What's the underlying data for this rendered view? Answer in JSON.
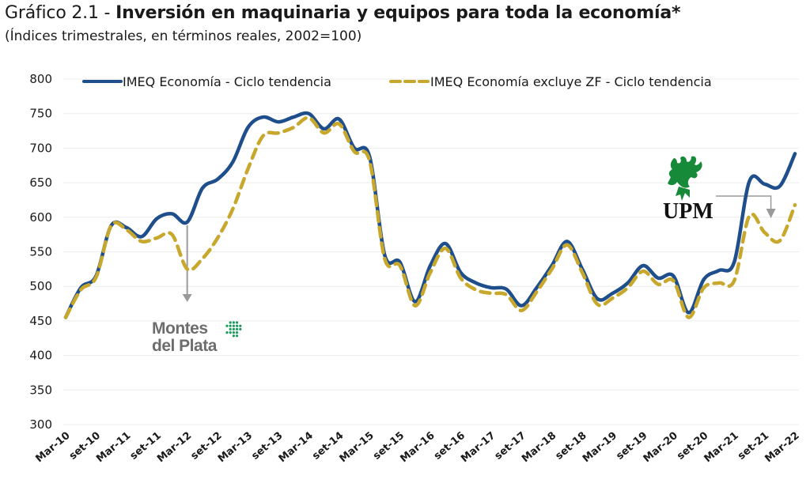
{
  "chart_data": {
    "type": "line",
    "title_lead": "Gráfico 2.1 - ",
    "title": "Inversión en maquinaria y equipos para toda la economía*",
    "subtitle": "(Índices trimestrales, en términos reales, 2002=100)",
    "xlabel": "",
    "ylabel": "",
    "ylim": [
      300,
      800
    ],
    "yticks": [
      800,
      750,
      700,
      650,
      600,
      550,
      500,
      450,
      400,
      350,
      300
    ],
    "grid": true,
    "legend_position": "top",
    "x_tick_labels": [
      "Mar-10",
      "set-10",
      "Mar-11",
      "set-11",
      "Mar-12",
      "set-12",
      "Mar-13",
      "set-13",
      "Mar-14",
      "set-14",
      "Mar-15",
      "set-15",
      "Mar-16",
      "set-16",
      "Mar-17",
      "set-17",
      "Mar-18",
      "set-18",
      "Mar-19",
      "set-19",
      "Mar-20",
      "set-20",
      "Mar-21",
      "set-21",
      "Mar-22"
    ],
    "x": [
      "Mar-10",
      "Jun-10",
      "set-10",
      "Dic-10",
      "Mar-11",
      "Jun-11",
      "set-11",
      "Dic-11",
      "Mar-12",
      "Jun-12",
      "set-12",
      "Dic-12",
      "Mar-13",
      "Jun-13",
      "set-13",
      "Dic-13",
      "Mar-14",
      "Jun-14",
      "set-14",
      "Dic-14",
      "Mar-15",
      "Jun-15",
      "set-15",
      "Dic-15",
      "Mar-16",
      "Jun-16",
      "set-16",
      "Dic-16",
      "Mar-17",
      "Jun-17",
      "set-17",
      "Dic-17",
      "Mar-18",
      "Jun-18",
      "set-18",
      "Dic-18",
      "Mar-19",
      "Jun-19",
      "set-19",
      "Dic-19",
      "Mar-20",
      "Jun-20",
      "set-20",
      "Dic-20",
      "Mar-21",
      "Jun-21",
      "set-21",
      "Dic-21",
      "Mar-22"
    ],
    "series": [
      {
        "name": "IMEQ Economía - Ciclo tendencia",
        "color": "#1f4e8c",
        "style": "solid",
        "values": [
          455,
          498,
          515,
          588,
          585,
          572,
          598,
          605,
          593,
          642,
          655,
          680,
          730,
          745,
          738,
          745,
          750,
          728,
          742,
          700,
          688,
          545,
          535,
          478,
          530,
          562,
          520,
          505,
          498,
          496,
          472,
          498,
          530,
          565,
          525,
          482,
          490,
          505,
          530,
          512,
          515,
          462,
          510,
          523,
          535,
          652,
          648,
          645,
          692
        ]
      },
      {
        "name": "IMEQ Economía excluye ZF - Ciclo tendencia",
        "color": "#c8a82c",
        "style": "dashed",
        "values": [
          455,
          495,
          513,
          588,
          582,
          565,
          570,
          575,
          525,
          540,
          570,
          612,
          670,
          718,
          722,
          730,
          744,
          722,
          735,
          695,
          682,
          540,
          530,
          472,
          520,
          555,
          512,
          495,
          490,
          488,
          465,
          492,
          525,
          560,
          520,
          474,
          483,
          498,
          522,
          503,
          508,
          455,
          498,
          505,
          508,
          602,
          578,
          566,
          618
        ]
      }
    ],
    "annotations": [
      {
        "label": "Montes del Plata",
        "type": "logo",
        "near": "Mar-12",
        "arrow": "down"
      },
      {
        "label": "UPM",
        "type": "logo",
        "near": "set-21",
        "arrow": "down"
      }
    ]
  }
}
